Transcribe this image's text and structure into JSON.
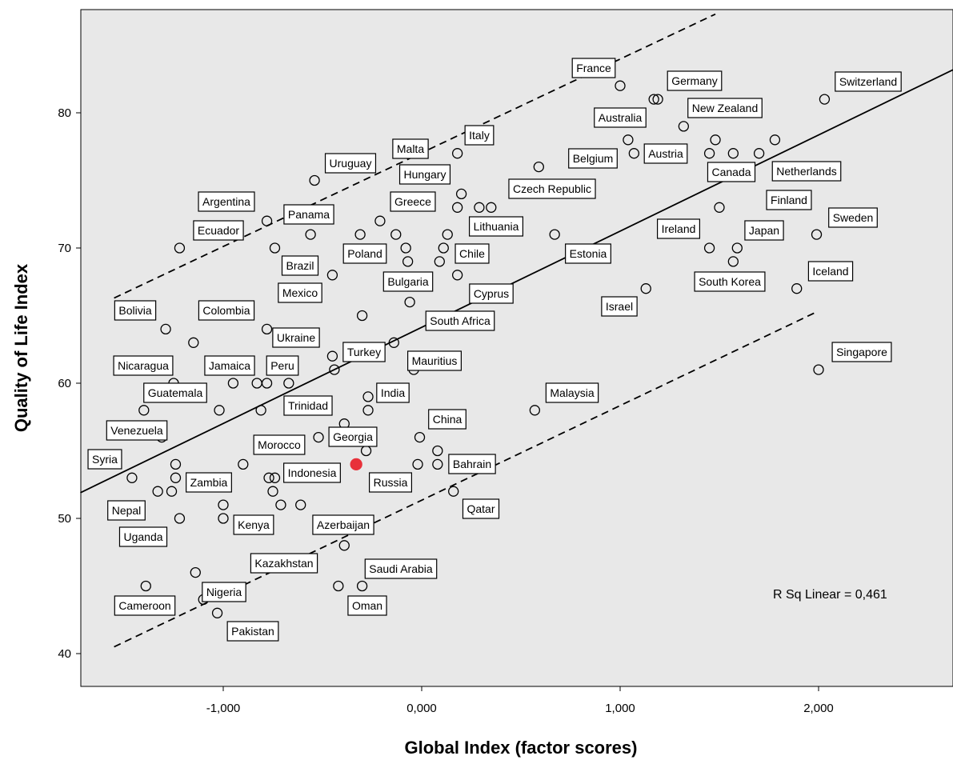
{
  "chart_data": {
    "type": "scatter",
    "title": "",
    "xlabel": "Global Index (factor scores)",
    "ylabel": "Quality of Life Index",
    "xlim": [
      -1.72,
      2.68
    ],
    "ylim": [
      37.5,
      87.3
    ],
    "x_ticks": [
      -1,
      0,
      1,
      2
    ],
    "x_tick_labels": [
      "-1,000",
      "0,000",
      "1,000",
      "2,000"
    ],
    "y_ticks": [
      40,
      50,
      60,
      70,
      80
    ],
    "y_tick_labels": [
      "40",
      "50",
      "60",
      "70",
      "80"
    ],
    "annotation": "R Sq Linear = 0,461",
    "grid": false,
    "background_color": "#e8e8e8",
    "highlight_color": "#e8313a",
    "fit_line": {
      "x": [
        -1.72,
        2.68
      ],
      "y": [
        51.9,
        83.2
      ]
    },
    "band_upper": {
      "x": [
        -1.55,
        1.48
      ],
      "y": [
        66.3,
        87.3
      ]
    },
    "band_lower": {
      "x": [
        -1.55,
        1.98
      ],
      "y": [
        40.5,
        65.2
      ]
    },
    "points": [
      {
        "label": "France",
        "x": 1.0,
        "y": 82
      },
      {
        "label": "Germany",
        "x": 1.17,
        "y": 81
      },
      {
        "label": "",
        "x": 1.19,
        "y": 81
      },
      {
        "label": "Switzerland",
        "x": 2.03,
        "y": 81
      },
      {
        "label": "Australia",
        "x": 1.04,
        "y": 78
      },
      {
        "label": "New Zealand",
        "x": 1.32,
        "y": 79
      },
      {
        "label": "Italy",
        "x": 0.18,
        "y": 77
      },
      {
        "label": "Malta",
        "x": -0.12,
        "y": 77
      },
      {
        "label": "Belgium",
        "x": 1.07,
        "y": 77
      },
      {
        "label": "Austria",
        "x": 1.48,
        "y": 78
      },
      {
        "label": "Canada",
        "x": 1.45,
        "y": 77
      },
      {
        "label": "",
        "x": 1.57,
        "y": 77
      },
      {
        "label": "Netherlands",
        "x": 1.7,
        "y": 77
      },
      {
        "label": "",
        "x": 1.78,
        "y": 78
      },
      {
        "label": "Uruguay",
        "x": -0.54,
        "y": 75
      },
      {
        "label": "Hungary",
        "x": 0.2,
        "y": 74
      },
      {
        "label": "Czech Republic",
        "x": 0.59,
        "y": 76
      },
      {
        "label": "",
        "x": 0.29,
        "y": 73
      },
      {
        "label": "",
        "x": 0.35,
        "y": 73
      },
      {
        "label": "Greece",
        "x": -0.21,
        "y": 72
      },
      {
        "label": "Argentina",
        "x": -0.78,
        "y": 72
      },
      {
        "label": "Panama",
        "x": -0.56,
        "y": 71
      },
      {
        "label": "Lithuania",
        "x": 0.18,
        "y": 73
      },
      {
        "label": "Finland",
        "x": 1.5,
        "y": 73
      },
      {
        "label": "Sweden",
        "x": 1.99,
        "y": 71
      },
      {
        "label": "Ecuador",
        "x": -1.22,
        "y": 70
      },
      {
        "label": "",
        "x": -0.74,
        "y": 70
      },
      {
        "label": "Poland",
        "x": -0.31,
        "y": 71
      },
      {
        "label": "",
        "x": -0.13,
        "y": 71
      },
      {
        "label": "",
        "x": -0.08,
        "y": 70
      },
      {
        "label": "",
        "x": -0.07,
        "y": 69
      },
      {
        "label": "",
        "x": 0.11,
        "y": 70
      },
      {
        "label": "",
        "x": 0.13,
        "y": 71
      },
      {
        "label": "Chile",
        "x": 0.09,
        "y": 69
      },
      {
        "label": "Estonia",
        "x": 0.67,
        "y": 71
      },
      {
        "label": "Ireland",
        "x": 1.45,
        "y": 70
      },
      {
        "label": "Japan",
        "x": 1.59,
        "y": 70
      },
      {
        "label": "South Korea",
        "x": 1.57,
        "y": 69
      },
      {
        "label": "Brazil",
        "x": -0.45,
        "y": 68
      },
      {
        "label": "Bulgaria",
        "x": -0.06,
        "y": 66
      },
      {
        "label": "Cyprus",
        "x": 0.18,
        "y": 68
      },
      {
        "label": "Iceland",
        "x": 1.89,
        "y": 67
      },
      {
        "label": "Israel",
        "x": 1.13,
        "y": 67
      },
      {
        "label": "Mexico",
        "x": -0.3,
        "y": 65
      },
      {
        "label": "Bolivia",
        "x": -1.29,
        "y": 64
      },
      {
        "label": "Colombia",
        "x": -1.15,
        "y": 63
      },
      {
        "label": "Ukraine",
        "x": -0.78,
        "y": 64
      },
      {
        "label": "South Africa",
        "x": -0.14,
        "y": 63
      },
      {
        "label": "Turkey",
        "x": -0.45,
        "y": 62
      },
      {
        "label": "",
        "x": -0.44,
        "y": 61
      },
      {
        "label": "Mauritius",
        "x": -0.04,
        "y": 61
      },
      {
        "label": "Singapore",
        "x": 2.0,
        "y": 61
      },
      {
        "label": "Jamaica",
        "x": -0.95,
        "y": 60
      },
      {
        "label": "Peru",
        "x": -0.83,
        "y": 60
      },
      {
        "label": "",
        "x": -0.78,
        "y": 60
      },
      {
        "label": "",
        "x": -0.67,
        "y": 60
      },
      {
        "label": "Nicaragua",
        "x": -1.25,
        "y": 60
      },
      {
        "label": "India",
        "x": -0.27,
        "y": 59
      },
      {
        "label": "",
        "x": -0.27,
        "y": 58
      },
      {
        "label": "Guatemala",
        "x": -1.4,
        "y": 58
      },
      {
        "label": "",
        "x": -1.02,
        "y": 58
      },
      {
        "label": "Trinidad",
        "x": -0.81,
        "y": 58
      },
      {
        "label": "Malaysia",
        "x": 0.57,
        "y": 58
      },
      {
        "label": "",
        "x": -0.39,
        "y": 57
      },
      {
        "label": "Venezuela",
        "x": -1.31,
        "y": 56
      },
      {
        "label": "Morocco",
        "x": -0.52,
        "y": 56
      },
      {
        "label": "Georgia",
        "x": -0.28,
        "y": 55
      },
      {
        "label": "China",
        "x": -0.01,
        "y": 56
      },
      {
        "label": "",
        "x": 0.08,
        "y": 55
      },
      {
        "label": "Bahrain",
        "x": 0.08,
        "y": 54
      },
      {
        "label": "",
        "x": -0.02,
        "y": 54
      },
      {
        "label": "Syria",
        "x": -1.46,
        "y": 53
      },
      {
        "label": "",
        "x": -1.24,
        "y": 54
      },
      {
        "label": "",
        "x": -0.9,
        "y": 54
      },
      {
        "label": "Zambia",
        "x": -1.24,
        "y": 53
      },
      {
        "label": "Indonesia",
        "x": -0.77,
        "y": 53
      },
      {
        "label": "",
        "x": -0.74,
        "y": 53
      },
      {
        "label": "",
        "x": -0.75,
        "y": 52
      },
      {
        "label": "Russia",
        "x": -0.33,
        "y": 54,
        "highlight": true
      },
      {
        "label": "Nepal",
        "x": -1.33,
        "y": 52
      },
      {
        "label": "",
        "x": -1.26,
        "y": 52
      },
      {
        "label": "Qatar",
        "x": 0.16,
        "y": 52
      },
      {
        "label": "Kenya",
        "x": -1.0,
        "y": 51
      },
      {
        "label": "",
        "x": -0.71,
        "y": 51
      },
      {
        "label": "",
        "x": -0.61,
        "y": 51
      },
      {
        "label": "Uganda",
        "x": -1.22,
        "y": 50
      },
      {
        "label": "",
        "x": -1.0,
        "y": 50
      },
      {
        "label": "Azerbaijan",
        "x": -0.39,
        "y": 48
      },
      {
        "label": "Kazakhstan",
        "x": -1.14,
        "y": 46
      },
      {
        "label": "Cameroon",
        "x": -1.39,
        "y": 45
      },
      {
        "label": "Oman",
        "x": -0.42,
        "y": 45
      },
      {
        "label": "Saudi Arabia",
        "x": -0.3,
        "y": 45
      },
      {
        "label": "Nigeria",
        "x": -1.1,
        "y": 44
      },
      {
        "label": "Pakistan",
        "x": -1.03,
        "y": 43
      }
    ]
  },
  "label_positions": {
    "France": [
      742,
      85
    ],
    "Germany": [
      868,
      101
    ],
    "Switzerland": [
      1085,
      102
    ],
    "Australia": [
      775,
      147
    ],
    "New Zealand": [
      906,
      135
    ],
    "Italy": [
      599,
      169
    ],
    "Malta": [
      513,
      186
    ],
    "Belgium": [
      741,
      198
    ],
    "Austria": [
      832,
      192
    ],
    "Canada": [
      914,
      215
    ],
    "Netherlands": [
      1008,
      214
    ],
    "Uruguay": [
      438,
      204
    ],
    "Hungary": [
      531,
      218
    ],
    "Czech Republic": [
      690,
      236
    ],
    "Greece": [
      516,
      252
    ],
    "Argentina": [
      283,
      252
    ],
    "Panama": [
      386,
      268
    ],
    "Lithuania": [
      620,
      283
    ],
    "Finland": [
      986,
      250
    ],
    "Sweden": [
      1066,
      272
    ],
    "Ecuador": [
      273,
      288
    ],
    "Poland": [
      456,
      317
    ],
    "Chile": [
      590,
      317
    ],
    "Estonia": [
      735,
      317
    ],
    "Ireland": [
      848,
      286
    ],
    "Japan": [
      955,
      288
    ],
    "South Korea": [
      912,
      352
    ],
    "Brazil": [
      375,
      332
    ],
    "Bulgaria": [
      510,
      352
    ],
    "Cyprus": [
      614,
      367
    ],
    "Iceland": [
      1038,
      339
    ],
    "Israel": [
      774,
      383
    ],
    "Mexico": [
      375,
      366
    ],
    "Bolivia": [
      169,
      388
    ],
    "Colombia": [
      283,
      388
    ],
    "Ukraine": [
      370,
      422
    ],
    "South Africa": [
      575,
      401
    ],
    "Turkey": [
      455,
      440
    ],
    "Mauritius": [
      543,
      451
    ],
    "Singapore": [
      1077,
      440
    ],
    "Jamaica": [
      287,
      457
    ],
    "Peru": [
      353,
      457
    ],
    "Nicaragua": [
      179,
      457
    ],
    "India": [
      491,
      491
    ],
    "Guatemala": [
      219,
      491
    ],
    "Trinidad": [
      385,
      507
    ],
    "Malaysia": [
      715,
      491
    ],
    "Venezuela": [
      171,
      538
    ],
    "Morocco": [
      349,
      556
    ],
    "Georgia": [
      441,
      546
    ],
    "China": [
      559,
      524
    ],
    "Bahrain": [
      590,
      580
    ],
    "Syria": [
      131,
      574
    ],
    "Zambia": [
      261,
      603
    ],
    "Indonesia": [
      390,
      591
    ],
    "Russia": [
      488,
      603
    ],
    "Nepal": [
      158,
      638
    ],
    "Qatar": [
      601,
      636
    ],
    "Kenya": [
      317,
      656
    ],
    "Uganda": [
      179,
      671
    ],
    "Azerbaijan": [
      429,
      656
    ],
    "Kazakhstan": [
      355,
      704
    ],
    "Cameroon": [
      181,
      757
    ],
    "Oman": [
      459,
      757
    ],
    "Saudi Arabia": [
      501,
      711
    ],
    "Nigeria": [
      280,
      740
    ],
    "Pakistan": [
      316,
      789
    ]
  }
}
